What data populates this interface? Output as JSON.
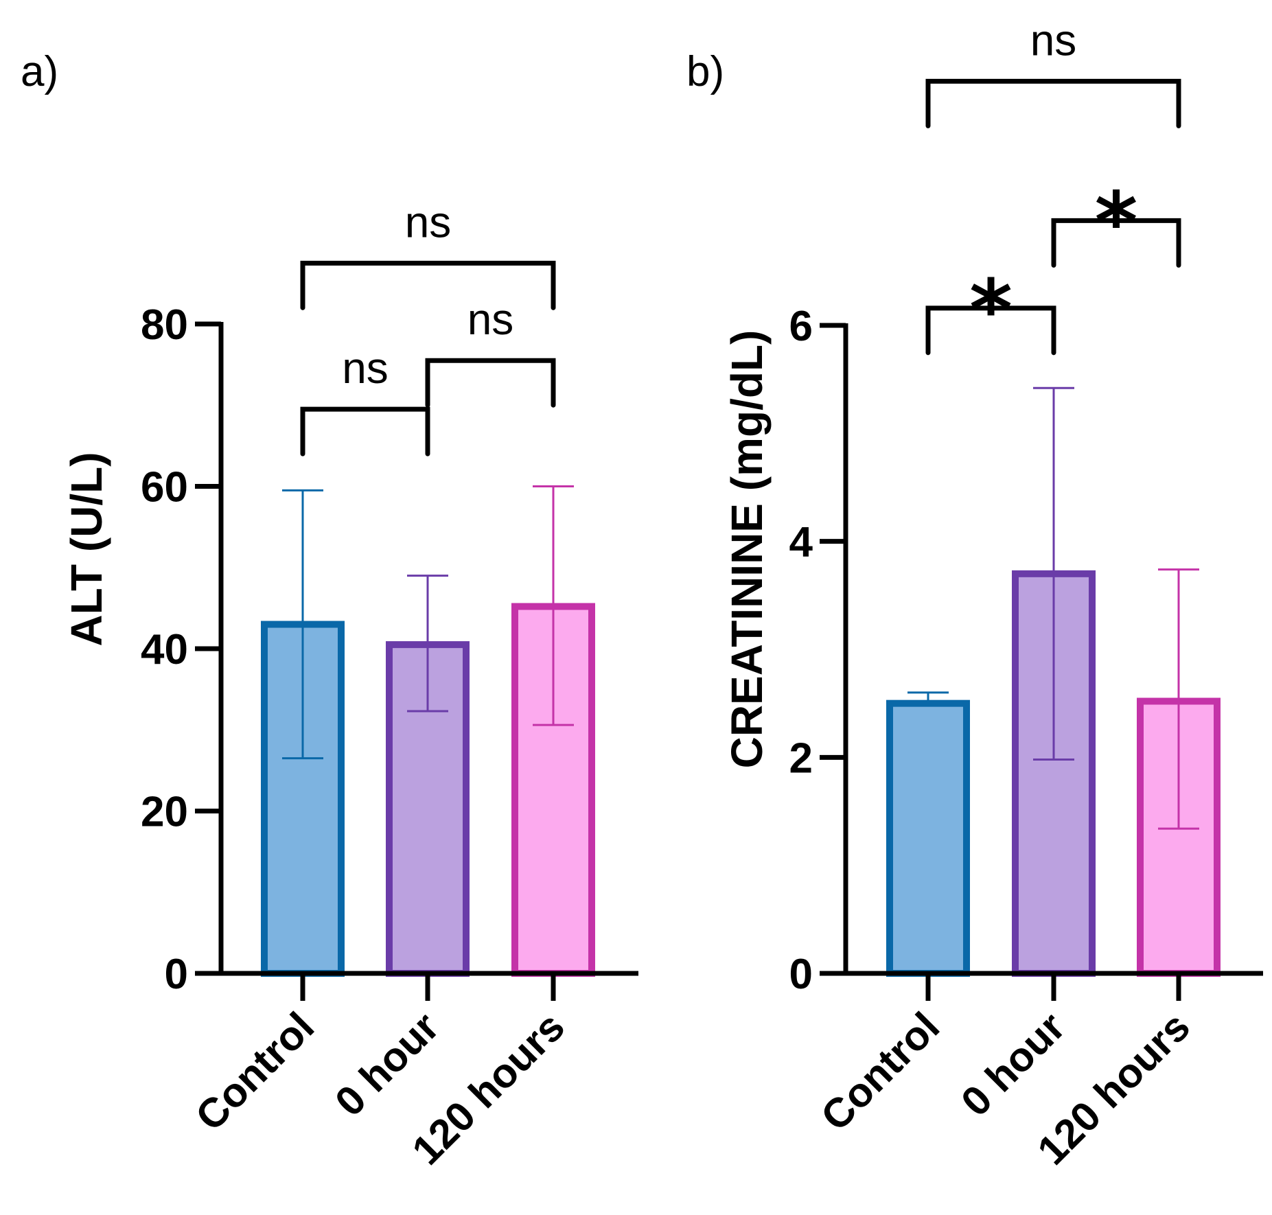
{
  "chart_data": [
    {
      "type": "bar",
      "panel_label": "a)",
      "ylabel": "ALT (U/L)",
      "xlabel": "",
      "ylim": [
        0,
        80
      ],
      "yticks": [
        "0",
        "20",
        "40",
        "60",
        "80"
      ],
      "categories": [
        "Control",
        "0 hour",
        "120 hours"
      ],
      "values": [
        43,
        40.5,
        45.2
      ],
      "error_high": [
        59.5,
        49,
        60
      ],
      "error_low": [
        26.5,
        32.3,
        30.6
      ],
      "colors": {
        "fills": [
          "#7db3e0",
          "#bba1df",
          "#fcaaee"
        ],
        "strokes": [
          "#0a68a8",
          "#6a3ca8",
          "#c433a8"
        ]
      },
      "comparisons": [
        {
          "from": 0,
          "to": 1,
          "label": "ns",
          "level": 69.5
        },
        {
          "from": 1,
          "to": 2,
          "label": "ns",
          "level": 75.5
        },
        {
          "from": 0,
          "to": 2,
          "label": "ns",
          "level": 87.5
        }
      ]
    },
    {
      "type": "bar",
      "panel_label": "b)",
      "ylabel": "CREATININE (mg/dL)",
      "xlabel": "",
      "ylim": [
        0,
        6
      ],
      "yticks": [
        "0",
        "2",
        "4",
        "6"
      ],
      "categories": [
        "Control",
        "0 hour",
        "120 hours"
      ],
      "values": [
        2.5,
        3.7,
        2.52
      ],
      "error_high": [
        2.6,
        5.42,
        3.74
      ],
      "error_low": [
        2.5,
        1.98,
        1.34
      ],
      "colors": {
        "fills": [
          "#7db3e0",
          "#bba1df",
          "#fcaaee"
        ],
        "strokes": [
          "#0a68a8",
          "#6a3ca8",
          "#c433a8"
        ]
      },
      "comparisons": [
        {
          "from": 0,
          "to": 1,
          "label": "*",
          "level": 6.16
        },
        {
          "from": 1,
          "to": 2,
          "label": "*",
          "level": 6.97
        },
        {
          "from": 0,
          "to": 2,
          "label": "ns",
          "level": 8.26
        }
      ]
    }
  ]
}
